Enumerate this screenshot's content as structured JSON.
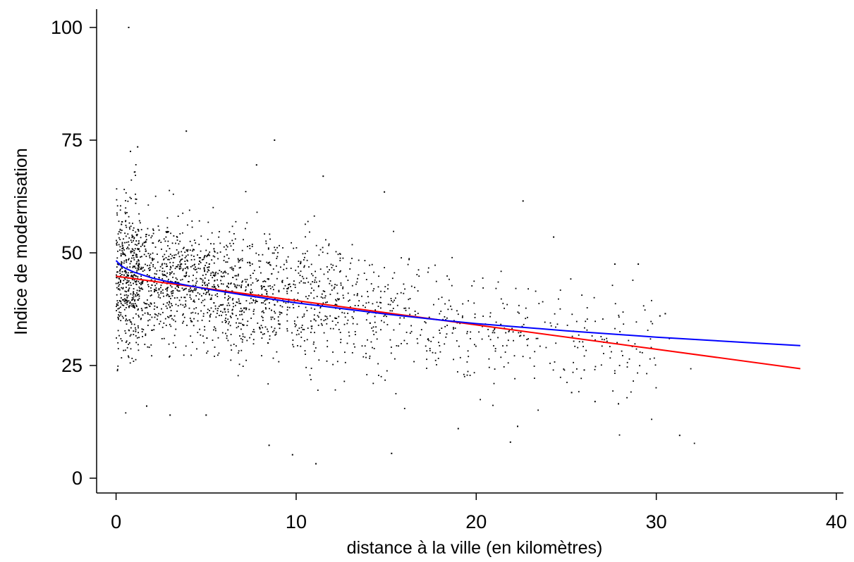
{
  "chart_data": {
    "type": "scatter",
    "title": "",
    "xlabel": "distance à la ville (en kilomètres)",
    "ylabel": "Indice de modernisation",
    "xlim": [
      -1,
      40.5
    ],
    "ylim": [
      -3,
      104
    ],
    "x_ticks": [
      0,
      10,
      20,
      30,
      40
    ],
    "y_ticks": [
      0,
      25,
      50,
      75,
      100
    ],
    "grid": false,
    "legend": "none",
    "point_color": "#000000",
    "scatter_summary": {
      "approx_count": 2300,
      "x_range": [
        0,
        38
      ],
      "y_range": [
        3,
        100
      ],
      "note": "dense cloud concentrated at 0-15 km, values mostly 25-60"
    },
    "scatter_points": [
      {
        "x": 0.7,
        "y": 100
      },
      {
        "x": 3.9,
        "y": 77
      },
      {
        "x": 8.8,
        "y": 75
      },
      {
        "x": 1.2,
        "y": 73.5
      },
      {
        "x": 0.8,
        "y": 72.5
      },
      {
        "x": 7.8,
        "y": 69.5
      },
      {
        "x": 11.5,
        "y": 67
      },
      {
        "x": 22.6,
        "y": 61.5
      },
      {
        "x": 14.9,
        "y": 63.5
      },
      {
        "x": 24.3,
        "y": 53.5
      },
      {
        "x": 29.0,
        "y": 47.5
      },
      {
        "x": 27.7,
        "y": 47.5
      },
      {
        "x": 30.2,
        "y": 36
      },
      {
        "x": 30.5,
        "y": 36.5
      },
      {
        "x": 31.3,
        "y": 9.5
      },
      {
        "x": 21.9,
        "y": 8
      },
      {
        "x": 22.3,
        "y": 11.5
      },
      {
        "x": 11.1,
        "y": 3.2
      },
      {
        "x": 8.5,
        "y": 7.3
      },
      {
        "x": 9.8,
        "y": 5.2
      },
      {
        "x": 15.3,
        "y": 5.5
      },
      {
        "x": 1.7,
        "y": 16
      },
      {
        "x": 3.0,
        "y": 14
      },
      {
        "x": 5.0,
        "y": 14
      },
      {
        "x": 19.0,
        "y": 11
      },
      {
        "x": 27.9,
        "y": 16.5
      },
      {
        "x": 26.6,
        "y": 17
      },
      {
        "x": 26.0,
        "y": 24
      },
      {
        "x": 25.3,
        "y": 19
      }
    ],
    "series": [
      {
        "type": "line",
        "color": "#ff0000",
        "x": [
          0,
          38
        ],
        "y": [
          44.8,
          24.3
        ]
      },
      {
        "type": "line",
        "color": "#0000ff",
        "x": [
          0,
          0.25,
          0.5,
          1,
          2,
          3,
          5,
          7,
          10,
          13,
          15,
          18,
          20,
          25,
          30,
          35,
          38
        ],
        "y": [
          48.3,
          47.2,
          46.6,
          45.7,
          44.4,
          43.5,
          42.0,
          40.7,
          38.9,
          37.4,
          36.4,
          35.1,
          34.3,
          32.7,
          31.3,
          30.1,
          29.4
        ]
      }
    ]
  }
}
